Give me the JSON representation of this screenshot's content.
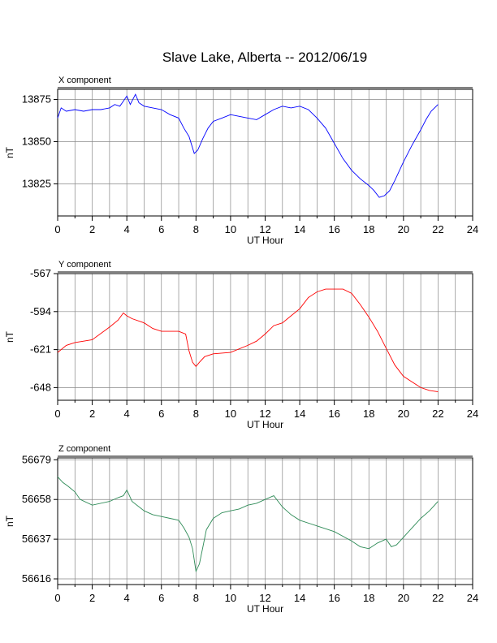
{
  "title": "Slave Lake, Alberta -- 2012/06/19",
  "chart_data": [
    {
      "type": "line",
      "panel_label": "X component",
      "xlabel": "UT Hour",
      "ylabel": "nT",
      "xlim": [
        0,
        24
      ],
      "ylim": [
        13806,
        13881
      ],
      "x_ticks": [
        0,
        2,
        4,
        6,
        8,
        10,
        12,
        14,
        16,
        18,
        20,
        22,
        24
      ],
      "y_ticks": [
        13875,
        13850,
        13825
      ],
      "grid": true,
      "color": "#0000ff",
      "series": [
        {
          "x": [
            0,
            0.2,
            0.5,
            1,
            1.5,
            2,
            2.5,
            3,
            3.3,
            3.6,
            3.8,
            4,
            4.2,
            4.5,
            4.7,
            5,
            5.5,
            6,
            6.5,
            7,
            7.3,
            7.6,
            7.9,
            8.1,
            8.4,
            8.7,
            9,
            9.5,
            10,
            10.5,
            11,
            11.5,
            12,
            12.5,
            13,
            13.5,
            14,
            14.5,
            15,
            15.5,
            16,
            16.5,
            17,
            17.5,
            18,
            18.3,
            18.6,
            18.9,
            19.2,
            19.5,
            20,
            20.5,
            21,
            21.3,
            21.6,
            22
          ],
          "values": [
            13864,
            13870,
            13868,
            13869,
            13868,
            13869,
            13869,
            13870,
            13872,
            13871,
            13874,
            13877,
            13872,
            13878,
            13873,
            13871,
            13870,
            13869,
            13866,
            13864,
            13858,
            13853,
            13843,
            13845,
            13852,
            13858,
            13862,
            13864,
            13866,
            13865,
            13864,
            13863,
            13866,
            13869,
            13871,
            13870,
            13871,
            13869,
            13864,
            13858,
            13849,
            13840,
            13833,
            13828,
            13824,
            13821,
            13817,
            13818,
            13821,
            13827,
            13838,
            13848,
            13857,
            13863,
            13868,
            13872
          ]
        }
      ]
    },
    {
      "type": "line",
      "panel_label": "Y component",
      "xlabel": "UT Hour",
      "ylabel": "nT",
      "xlim": [
        0,
        24
      ],
      "ylim": [
        -657,
        -567
      ],
      "x_ticks": [
        0,
        2,
        4,
        6,
        8,
        10,
        12,
        14,
        16,
        18,
        20,
        22,
        24
      ],
      "y_ticks": [
        -567,
        -594,
        -621,
        -648
      ],
      "grid": true,
      "color": "#ff0000",
      "series": [
        {
          "x": [
            0,
            0.5,
            1,
            2,
            3,
            3.5,
            3.8,
            4,
            4.3,
            5,
            5.5,
            6,
            6.5,
            7,
            7.4,
            7.6,
            7.8,
            8,
            8.2,
            8.5,
            9,
            10,
            11,
            11.5,
            12,
            12.5,
            13,
            13.5,
            14,
            14.5,
            15,
            15.5,
            16,
            16.5,
            17,
            17.5,
            18,
            18.5,
            19,
            19.5,
            20,
            20.5,
            21,
            21.5,
            22
          ],
          "values": [
            -623,
            -618,
            -616,
            -614,
            -605,
            -600,
            -595,
            -597,
            -599,
            -602,
            -606,
            -608,
            -608,
            -608,
            -610,
            -622,
            -630,
            -633,
            -630,
            -626,
            -624,
            -623,
            -618,
            -615,
            -610,
            -604,
            -602,
            -597,
            -592,
            -584,
            -580,
            -578,
            -578,
            -578,
            -581,
            -589,
            -598,
            -608,
            -620,
            -632,
            -640,
            -644,
            -648,
            -650,
            -651
          ]
        }
      ]
    },
    {
      "type": "line",
      "panel_label": "Z component",
      "xlabel": "UT Hour",
      "ylabel": "nT",
      "xlim": [
        0,
        24
      ],
      "ylim": [
        56613,
        56680
      ],
      "x_ticks": [
        0,
        2,
        4,
        6,
        8,
        10,
        12,
        14,
        16,
        18,
        20,
        22,
        24
      ],
      "y_ticks": [
        56679,
        56658,
        56637,
        56616
      ],
      "grid": true,
      "color": "#2e8b57",
      "series": [
        {
          "x": [
            0,
            0.3,
            0.6,
            1,
            1.3,
            2,
            3,
            3.5,
            3.8,
            4,
            4.3,
            5,
            5.5,
            6,
            6.5,
            7,
            7.3,
            7.6,
            7.8,
            8,
            8.2,
            8.4,
            8.6,
            9,
            9.5,
            10,
            10.5,
            11,
            11.5,
            12,
            12.5,
            13,
            13.5,
            14,
            15,
            16,
            17,
            17.5,
            18,
            18.5,
            19,
            19.3,
            19.6,
            20,
            20.5,
            21,
            21.5,
            22
          ],
          "values": [
            56670,
            56667,
            56665,
            56662,
            56658,
            56655,
            56657,
            56659,
            56660,
            56663,
            56657,
            56652,
            56650,
            56649,
            56648,
            56647,
            56643,
            56638,
            56632,
            56620,
            56624,
            56633,
            56642,
            56648,
            56651,
            56652,
            56653,
            56655,
            56656,
            56658,
            56660,
            56654,
            56650,
            56647,
            56644,
            56641,
            56636,
            56633,
            56632,
            56635,
            56637,
            56633,
            56634,
            56638,
            56643,
            56648,
            56652,
            56657
          ]
        }
      ]
    }
  ]
}
